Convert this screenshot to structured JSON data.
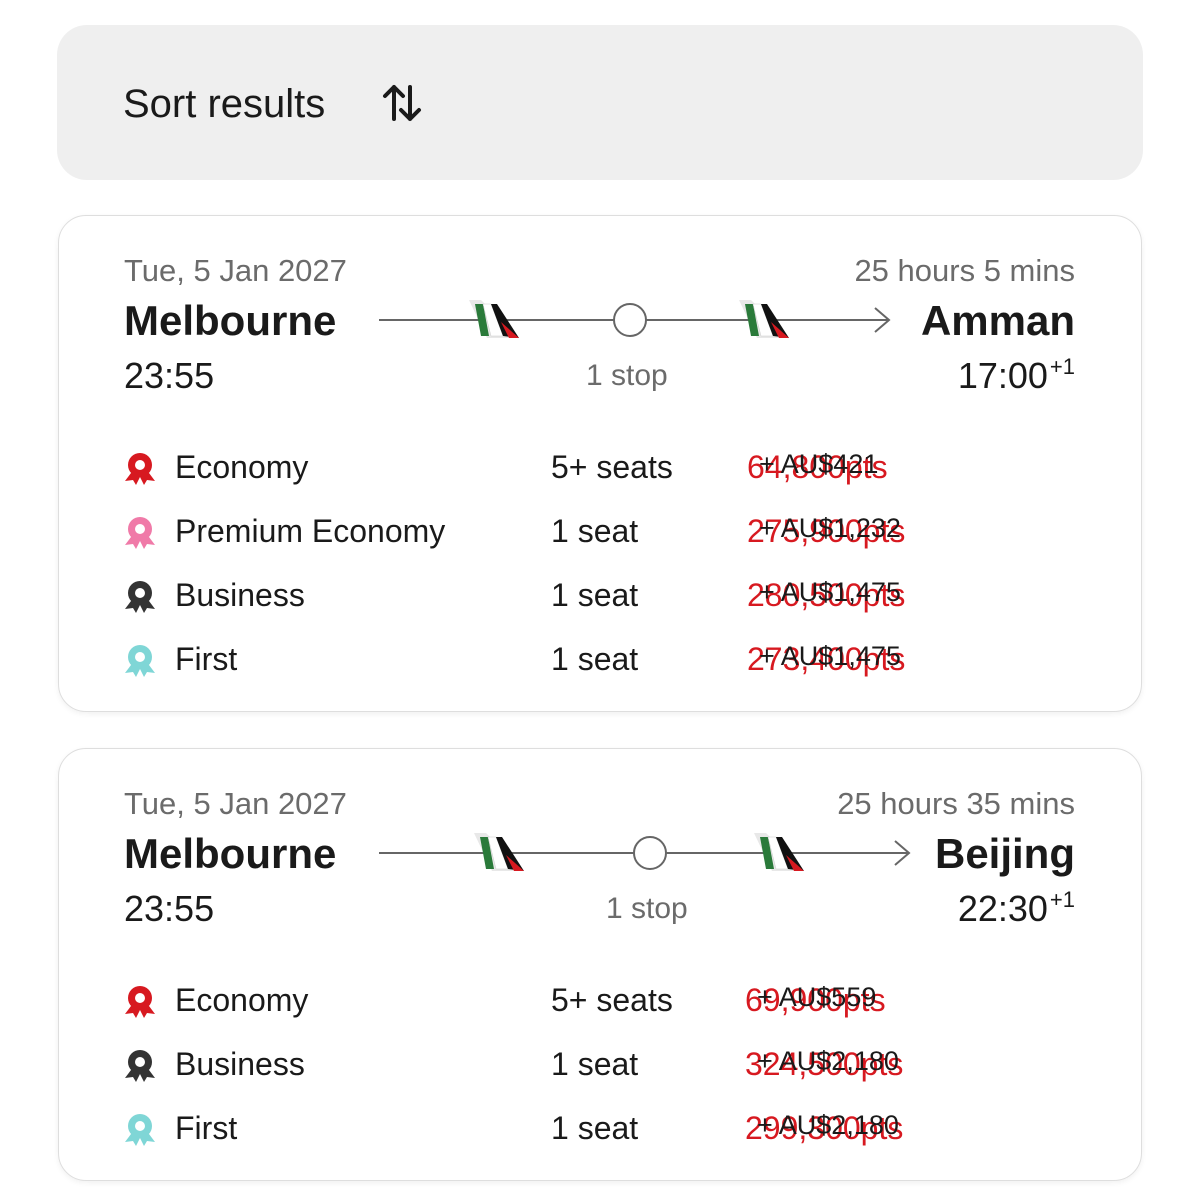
{
  "sort_label": "Sort results",
  "flights": [
    {
      "date": "Tue, 5 Jan 2027",
      "duration": "25 hours 5 mins",
      "origin": "Melbourne",
      "depart_time": "23:55",
      "destination": "Amman",
      "arrive_time": "17:00",
      "arrive_offset": "+1",
      "stops": "1 stop",
      "fares": [
        {
          "cabin": "Economy",
          "color": "#d71920",
          "seats": "5+ seats",
          "points": "64,800pts",
          "cash": "+ AU$421"
        },
        {
          "cabin": "Premium Economy",
          "color": "#f07aa8",
          "seats": "1 seat",
          "points": "275,900pts",
          "cash": "+ AU$1,232"
        },
        {
          "cabin": "Business",
          "color": "#333333",
          "seats": "1 seat",
          "points": "280,500pts",
          "cash": "+ AU$1,475"
        },
        {
          "cabin": "First",
          "color": "#7fd6d6",
          "seats": "1 seat",
          "points": "273,400pts",
          "cash": "+ AU$1,475"
        }
      ]
    },
    {
      "date": "Tue, 5 Jan 2027",
      "duration": "25 hours 35 mins",
      "origin": "Melbourne",
      "depart_time": "23:55",
      "destination": "Beijing",
      "arrive_time": "22:30",
      "arrive_offset": "+1",
      "stops": "1 stop",
      "fares": [
        {
          "cabin": "Economy",
          "color": "#d71920",
          "seats": "5+ seats",
          "points": "69,900pts",
          "cash": "+ AU$559"
        },
        {
          "cabin": "Business",
          "color": "#333333",
          "seats": "1 seat",
          "points": "324,500pts",
          "cash": "+ AU$2,180"
        },
        {
          "cabin": "First",
          "color": "#7fd6d6",
          "seats": "1 seat",
          "points": "299,300pts",
          "cash": "+ AU$2,180"
        }
      ]
    }
  ]
}
